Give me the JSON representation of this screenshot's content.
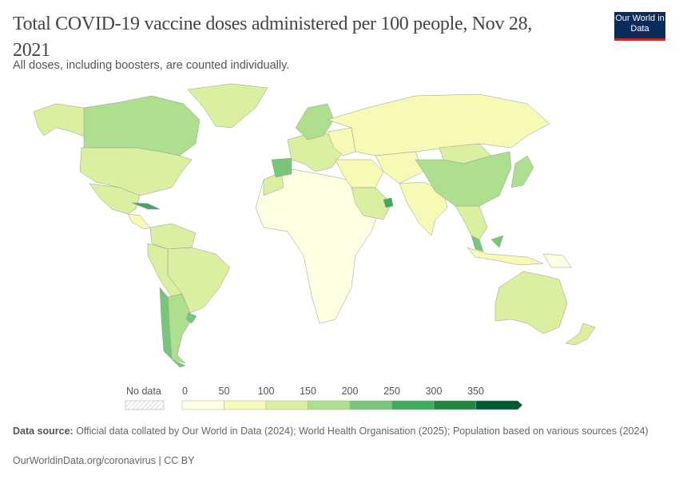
{
  "header": {
    "title": "Total COVID-19 vaccine doses administered per 100 people, Nov 28, 2021",
    "subtitle": "All doses, including boosters, are counted individually.",
    "logo": "Our World in Data"
  },
  "legend": {
    "no_data_label": "No data",
    "ticks": [
      "0",
      "50",
      "100",
      "150",
      "200",
      "250",
      "300",
      "350"
    ],
    "bins": [
      {
        "range": "0-50",
        "color": "#fefee3"
      },
      {
        "range": "50-100",
        "color": "#f6fab4"
      },
      {
        "range": "100-150",
        "color": "#daf0a0"
      },
      {
        "range": "150-200",
        "color": "#addf8e"
      },
      {
        "range": "200-250",
        "color": "#78c67a"
      },
      {
        "range": "250-300",
        "color": "#3faa5c"
      },
      {
        "range": "300-350",
        "color": "#238443"
      },
      {
        "range": "350+",
        "color": "#005a32"
      }
    ]
  },
  "map_regions": [
    {
      "name": "alaska",
      "bin": 2
    },
    {
      "name": "canada",
      "bin": 3
    },
    {
      "name": "usa",
      "bin": 2
    },
    {
      "name": "greenland",
      "bin": 2
    },
    {
      "name": "mexico",
      "bin": 2
    },
    {
      "name": "central-america",
      "bin": 1
    },
    {
      "name": "cuba",
      "bin": 5
    },
    {
      "name": "north-south-america",
      "bin": 2
    },
    {
      "name": "brazil",
      "bin": 2
    },
    {
      "name": "peru-bolivia",
      "bin": 2
    },
    {
      "name": "argentina",
      "bin": 3
    },
    {
      "name": "chile",
      "bin": 4
    },
    {
      "name": "uruguay",
      "bin": 4
    },
    {
      "name": "africa",
      "bin": 0
    },
    {
      "name": "morocco",
      "bin": 2
    },
    {
      "name": "europe",
      "bin": 2
    },
    {
      "name": "scandinavia",
      "bin": 3
    },
    {
      "name": "iberia",
      "bin": 4
    },
    {
      "name": "eastern-europe",
      "bin": 1
    },
    {
      "name": "russia",
      "bin": 1
    },
    {
      "name": "middle-east",
      "bin": 1
    },
    {
      "name": "arabia",
      "bin": 2
    },
    {
      "name": "uae",
      "bin": 5
    },
    {
      "name": "central-asia",
      "bin": 1
    },
    {
      "name": "india",
      "bin": 1
    },
    {
      "name": "mongolia",
      "bin": 2
    },
    {
      "name": "china",
      "bin": 3
    },
    {
      "name": "japan",
      "bin": 3
    },
    {
      "name": "southeast-asia",
      "bin": 2
    },
    {
      "name": "malaysia",
      "bin": 4
    },
    {
      "name": "indonesia",
      "bin": 1
    },
    {
      "name": "papua",
      "bin": 0
    },
    {
      "name": "australia",
      "bin": 2
    },
    {
      "name": "new-zealand",
      "bin": 2
    }
  ],
  "footer": {
    "source_label": "Data source:",
    "source_text": " Official data collated by Our World in Data (2024); World Health Organisation (2025); Population based on various sources (2024)",
    "link": "OurWorldinData.org/coronavirus | CC BY"
  }
}
